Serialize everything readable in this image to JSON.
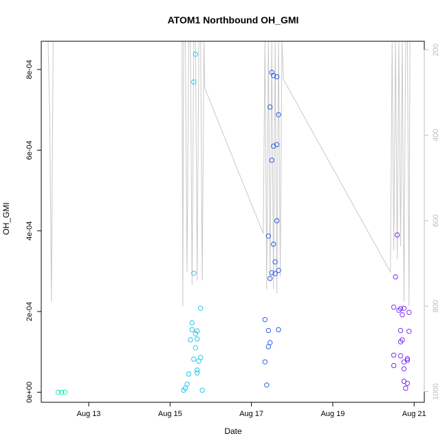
{
  "chart_data": {
    "type": "scatter",
    "title": "ATOM1 Northbound OH_GMI",
    "xlabel": "Date",
    "ylabel": "OH_GMI",
    "x_is_date": true,
    "xlim": [
      "2016-08-11T20:00",
      "2016-08-21T06:00"
    ],
    "xticks": [
      {
        "date": "2016-08-13",
        "label": "Aug 13"
      },
      {
        "date": "2016-08-15",
        "label": "Aug 15"
      },
      {
        "date": "2016-08-17",
        "label": "Aug 17"
      },
      {
        "date": "2016-08-19",
        "label": "Aug 19"
      },
      {
        "date": "2016-08-21",
        "label": "Aug 21"
      }
    ],
    "ylim": [
      -2.5e-05,
      0.00087
    ],
    "yticks": [
      {
        "value": 0,
        "label": "0e+00"
      },
      {
        "value": 0.0002,
        "label": "2e-04"
      },
      {
        "value": 0.0004,
        "label": "4e-04"
      },
      {
        "value": 0.0006,
        "label": "6e-04"
      },
      {
        "value": 0.0008,
        "label": "8e-04"
      }
    ],
    "right_axis": {
      "note": "altitude/pressure, reversed",
      "lim": [
        1025,
        180
      ],
      "ticks": [
        {
          "value": 200,
          "label": "200"
        },
        {
          "value": 400,
          "label": "400"
        },
        {
          "value": 600,
          "label": "600"
        },
        {
          "value": 800,
          "label": "800"
        },
        {
          "value": 1000,
          "label": "1000"
        }
      ],
      "color": "#bdbdbd"
    },
    "grid": false,
    "series": [
      {
        "color": "#1de9b6",
        "points": [
          [
            "2016-08-12T06:00",
            0.0
          ],
          [
            "2016-08-12T08:00",
            0.0
          ],
          [
            "2016-08-12T10:00",
            0.0
          ]
        ]
      },
      {
        "color": "#26c6f0",
        "points": [
          [
            "2016-08-15T08:00",
            5e-06
          ],
          [
            "2016-08-15T09:00",
            1e-05
          ],
          [
            "2016-08-15T10:00",
            2e-05
          ],
          [
            "2016-08-15T11:00",
            4.5e-05
          ],
          [
            "2016-08-15T12:00",
            0.00013
          ],
          [
            "2016-08-15T13:00",
            0.000172
          ],
          [
            "2016-08-15T13:00",
            0.000155
          ],
          [
            "2016-08-15T14:00",
            8.2e-05
          ],
          [
            "2016-08-15T14:00",
            0.000295
          ],
          [
            "2016-08-15T14:00",
            0.000769
          ],
          [
            "2016-08-15T15:00",
            0.000838
          ],
          [
            "2016-08-15T15:00",
            0.000145
          ],
          [
            "2016-08-15T15:00",
            0.00011
          ],
          [
            "2016-08-15T16:00",
            0.000152
          ],
          [
            "2016-08-15T16:00",
            0.000132
          ],
          [
            "2016-08-15T16:00",
            5.5e-05
          ],
          [
            "2016-08-15T16:00",
            4.8e-05
          ],
          [
            "2016-08-15T17:00",
            7.7e-05
          ],
          [
            "2016-08-15T18:00",
            8.6e-05
          ],
          [
            "2016-08-15T18:00",
            0.000208
          ],
          [
            "2016-08-15T19:00",
            5e-06
          ]
        ]
      },
      {
        "color": "#2f5fe8",
        "points": [
          [
            "2016-08-17T08:00",
            0.00018
          ],
          [
            "2016-08-17T08:00",
            7.5e-05
          ],
          [
            "2016-08-17T09:00",
            1.8e-05
          ],
          [
            "2016-08-17T10:00",
            0.000153
          ],
          [
            "2016-08-17T10:00",
            0.000113
          ],
          [
            "2016-08-17T10:00",
            0.000387
          ],
          [
            "2016-08-17T11:00",
            0.000282
          ],
          [
            "2016-08-17T11:00",
            0.000123
          ],
          [
            "2016-08-17T11:00",
            0.000707
          ],
          [
            "2016-08-17T12:00",
            0.000793
          ],
          [
            "2016-08-17T12:00",
            0.000575
          ],
          [
            "2016-08-17T12:00",
            0.000296
          ],
          [
            "2016-08-17T13:00",
            0.000785
          ],
          [
            "2016-08-17T13:00",
            0.00061
          ],
          [
            "2016-08-17T13:00",
            0.000367
          ],
          [
            "2016-08-17T14:00",
            0.000294
          ],
          [
            "2016-08-17T14:00",
            0.000323
          ],
          [
            "2016-08-17T15:00",
            0.000782
          ],
          [
            "2016-08-17T15:00",
            0.000614
          ],
          [
            "2016-08-17T15:00",
            0.000425
          ],
          [
            "2016-08-17T16:00",
            0.000688
          ],
          [
            "2016-08-17T16:00",
            0.000302
          ],
          [
            "2016-08-17T16:00",
            0.000155
          ]
        ]
      },
      {
        "color": "#7b2ff0",
        "points": [
          [
            "2016-08-20T12:00",
            0.000211
          ],
          [
            "2016-08-20T12:00",
            9.2e-05
          ],
          [
            "2016-08-20T12:00",
            6.6e-05
          ],
          [
            "2016-08-20T13:00",
            0.000286
          ],
          [
            "2016-08-20T14:00",
            0.00039
          ],
          [
            "2016-08-20T15:00",
            0.000203
          ],
          [
            "2016-08-20T16:00",
            0.000207
          ],
          [
            "2016-08-20T16:00",
            0.000153
          ],
          [
            "2016-08-20T16:00",
            0.000125
          ],
          [
            "2016-08-20T16:00",
            9e-05
          ],
          [
            "2016-08-20T17:00",
            0.00013
          ],
          [
            "2016-08-20T17:00",
            0.000192
          ],
          [
            "2016-08-20T18:00",
            0.000208
          ],
          [
            "2016-08-20T18:00",
            7.5e-05
          ],
          [
            "2016-08-20T18:00",
            5.8e-05
          ],
          [
            "2016-08-20T18:00",
            2.7e-05
          ],
          [
            "2016-08-20T19:00",
            1e-05
          ],
          [
            "2016-08-20T20:00",
            8.3e-05
          ],
          [
            "2016-08-20T20:00",
            7.9e-05
          ],
          [
            "2016-08-20T20:00",
            2.2e-05
          ],
          [
            "2016-08-20T21:00",
            0.000151
          ],
          [
            "2016-08-20T21:00",
            0.000198
          ]
        ]
      }
    ],
    "altitude_line": {
      "color": "#c8c8c8",
      "points": [
        [
          "2016-08-12T00:00",
          180
        ],
        [
          "2016-08-12T01:00",
          350
        ],
        [
          "2016-08-12T02:00",
          790
        ],
        [
          "2016-08-12T03:00",
          180
        ],
        [
          "2016-08-12T12:00",
          180
        ],
        [
          "2016-08-15T07:00",
          180
        ],
        [
          "2016-08-15T07:30",
          800
        ],
        [
          "2016-08-15T08:00",
          180
        ],
        [
          "2016-08-15T09:00",
          180
        ],
        [
          "2016-08-15T10:00",
          720
        ],
        [
          "2016-08-15T11:00",
          180
        ],
        [
          "2016-08-15T12:00",
          180
        ],
        [
          "2016-08-15T13:00",
          750
        ],
        [
          "2016-08-15T14:00",
          180
        ],
        [
          "2016-08-15T15:00",
          180
        ],
        [
          "2016-08-15T16:00",
          740
        ],
        [
          "2016-08-15T17:00",
          180
        ],
        [
          "2016-08-15T18:00",
          180
        ],
        [
          "2016-08-15T19:00",
          740
        ],
        [
          "2016-08-15T20:00",
          180
        ],
        [
          "2016-08-15T20:30",
          290
        ],
        [
          "2016-08-17T07:00",
          630
        ],
        [
          "2016-08-17T08:00",
          180
        ],
        [
          "2016-08-17T09:00",
          760
        ],
        [
          "2016-08-17T10:00",
          180
        ],
        [
          "2016-08-17T11:00",
          740
        ],
        [
          "2016-08-17T12:00",
          180
        ],
        [
          "2016-08-17T13:00",
          760
        ],
        [
          "2016-08-17T14:00",
          180
        ],
        [
          "2016-08-17T15:00",
          770
        ],
        [
          "2016-08-17T16:00",
          180
        ],
        [
          "2016-08-17T17:00",
          730
        ],
        [
          "2016-08-17T18:00",
          180
        ],
        [
          "2016-08-17T19:00",
          270
        ],
        [
          "2016-08-20T10:00",
          720
        ],
        [
          "2016-08-20T11:00",
          180
        ],
        [
          "2016-08-20T12:00",
          670
        ],
        [
          "2016-08-20T13:00",
          180
        ],
        [
          "2016-08-20T14:00",
          690
        ],
        [
          "2016-08-20T15:00",
          180
        ],
        [
          "2016-08-20T16:00",
          660
        ],
        [
          "2016-08-20T17:00",
          180
        ],
        [
          "2016-08-20T18:00",
          790
        ],
        [
          "2016-08-20T19:00",
          180
        ],
        [
          "2016-08-20T20:00",
          180
        ],
        [
          "2016-08-20T21:00",
          800
        ],
        [
          "2016-08-20T21:30",
          180
        ]
      ]
    }
  }
}
